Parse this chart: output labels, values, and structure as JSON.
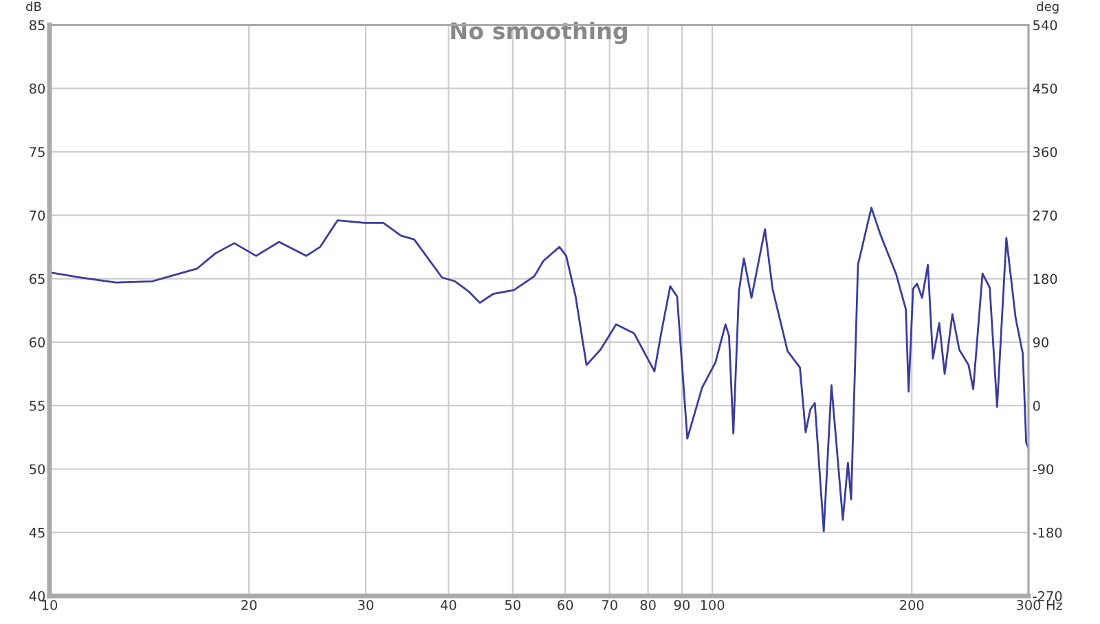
{
  "chart_data": {
    "type": "line",
    "title": "No smoothing",
    "xlabel": "Hz",
    "ylabel": "dB",
    "y2label": "deg",
    "log": "x",
    "grid": true,
    "line_style": "solid",
    "xlim": [
      10,
      300
    ],
    "xticks": [
      10,
      20,
      30,
      40,
      50,
      60,
      70,
      80,
      90,
      100,
      200,
      300
    ],
    "ylim": [
      40,
      85
    ],
    "yticks": [
      40,
      45,
      50,
      55,
      60,
      65,
      70,
      75,
      80,
      85
    ],
    "y2lim": [
      -270,
      540
    ],
    "y2ticks": [
      -270,
      -180,
      -90,
      0,
      90,
      180,
      270,
      360,
      450,
      540
    ],
    "series": [
      {
        "color": "#3b3b9e",
        "x": [
          10,
          11.1,
          12.6,
          14.3,
          15.7,
          16.7,
          17.8,
          19.0,
          20.5,
          22.2,
          24.4,
          25.6,
          27.2,
          29.9,
          31.9,
          33.9,
          35.5,
          39.1,
          40.9,
          42.9,
          44.6,
          46.7,
          50.2,
          53.9,
          55.6,
          58.8,
          60.2,
          62.2,
          64.6,
          67.8,
          71.6,
          76.2,
          81.8,
          83.8,
          86.4,
          88.5,
          91.7,
          96.5,
          101.1,
          104.7,
          106.0,
          107.6,
          109.7,
          111.6,
          114.6,
          120.1,
          123.3,
          129.9,
          135.6,
          138.3,
          140.6,
          142.8,
          147.3,
          151.3,
          157.4,
          160.2,
          162.0,
          165.9,
          173.8,
          179.3,
          189.3,
          195.9,
          197.8,
          200.9,
          203.7,
          207.3,
          211.5,
          215.2,
          220.0,
          224.2,
          230.3,
          235.9,
          243.6,
          247.6,
          255.7,
          262.2,
          269.0,
          277.8,
          286.9,
          294.1,
          297.6,
          299.6
        ],
        "values": [
          65.5,
          65.1,
          64.7,
          64.8,
          65.4,
          65.8,
          67.0,
          67.8,
          66.8,
          67.9,
          66.8,
          67.5,
          69.6,
          69.4,
          69.4,
          68.4,
          68.1,
          65.1,
          64.8,
          64.0,
          63.1,
          63.8,
          64.1,
          65.2,
          66.4,
          67.5,
          66.8,
          63.6,
          58.2,
          59.4,
          61.4,
          60.7,
          57.7,
          60.8,
          64.4,
          63.6,
          52.4,
          56.4,
          58.4,
          61.4,
          60.5,
          52.8,
          64.0,
          66.6,
          63.5,
          68.9,
          64.2,
          59.3,
          58.0,
          52.9,
          54.7,
          55.2,
          45.1,
          56.6,
          46.0,
          50.5,
          47.6,
          66.1,
          70.6,
          68.5,
          65.4,
          62.6,
          56.1,
          64.2,
          64.6,
          63.5,
          66.1,
          58.7,
          61.5,
          57.5,
          62.2,
          59.4,
          58.2,
          56.3,
          65.4,
          64.3,
          54.9,
          68.2,
          61.9,
          59.1,
          52.1,
          51.7
        ]
      }
    ]
  }
}
